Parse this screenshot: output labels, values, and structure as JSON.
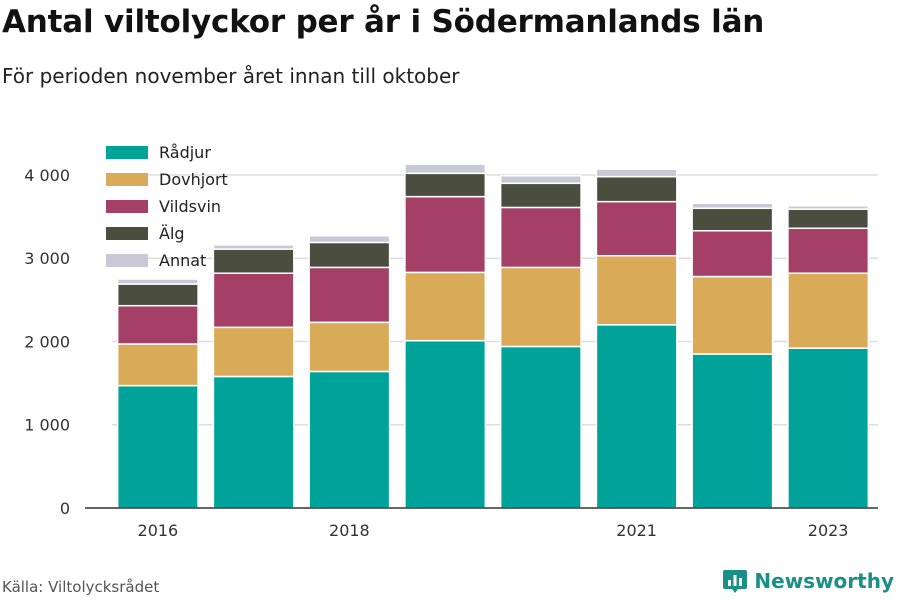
{
  "title": "Antal viltolyckor per år i Södermanlands län",
  "subtitle": "För perioden november året innan till oktober",
  "source": "Källa: Viltolycksrådet",
  "brand": {
    "name": "Newsworthy",
    "color": "#1a8f87",
    "icon": "bar-chart-logo-icon"
  },
  "chart_data": {
    "type": "bar",
    "stacked": true,
    "title": "Antal viltolyckor per år i Södermanlands län",
    "subtitle": "För perioden november året innan till oktober",
    "categories": [
      "2016",
      "2017",
      "2018",
      "2019",
      "2020",
      "2021",
      "2022",
      "2023"
    ],
    "tick_labels_x": [
      "2016",
      "",
      "2018",
      "",
      "",
      "2021",
      "",
      "2023"
    ],
    "series": [
      {
        "name": "Rådjur",
        "color": "#00a39a",
        "values": [
          1470,
          1580,
          1640,
          2010,
          1940,
          2200,
          1850,
          1920
        ]
      },
      {
        "name": "Dovhjort",
        "color": "#d9ab58",
        "values": [
          500,
          590,
          590,
          820,
          950,
          830,
          930,
          900
        ]
      },
      {
        "name": "Vildsvin",
        "color": "#a44066",
        "values": [
          460,
          650,
          660,
          910,
          720,
          650,
          550,
          540
        ]
      },
      {
        "name": "Älg",
        "color": "#4b4d3e",
        "values": [
          260,
          290,
          300,
          280,
          290,
          300,
          270,
          230
        ]
      },
      {
        "name": "Annat",
        "color": "#c8c8d6",
        "values": [
          60,
          50,
          80,
          110,
          90,
          90,
          60,
          40
        ]
      }
    ],
    "ylim": [
      0,
      4300
    ],
    "yticks": [
      0,
      1000,
      2000,
      3000,
      4000
    ],
    "ytick_labels": [
      "0",
      "1 000",
      "2 000",
      "3 000",
      "4 000"
    ],
    "xlabel": "",
    "ylabel": "",
    "grid": true,
    "legend": "top-left"
  }
}
